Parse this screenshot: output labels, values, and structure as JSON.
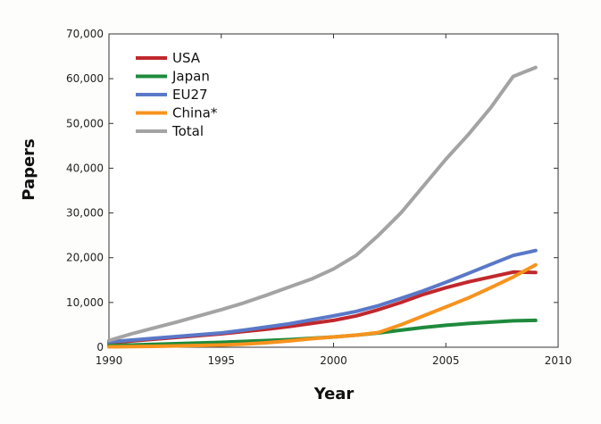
{
  "chart_data": {
    "type": "line",
    "title": "",
    "xlabel": "Year",
    "ylabel": "Papers",
    "xlim": [
      1990,
      2010
    ],
    "ylim": [
      0,
      70000
    ],
    "x_ticks": [
      1990,
      1995,
      2000,
      2005,
      2010
    ],
    "x_tick_labels": [
      "1990",
      "1995",
      "2000",
      "2005",
      "2010"
    ],
    "y_ticks": [
      0,
      10000,
      20000,
      30000,
      40000,
      50000,
      60000,
      70000
    ],
    "y_tick_labels": [
      "0",
      "10,000",
      "20,000",
      "30,000",
      "40,000",
      "50,000",
      "60,000",
      "70,000"
    ],
    "grid": false,
    "legend_position": "top-left",
    "series": [
      {
        "name": "USA",
        "color": "#c0282d",
        "x": [
          1990,
          1991,
          1992,
          1993,
          1994,
          1995,
          1996,
          1997,
          1998,
          1999,
          2000,
          2001,
          2002,
          2003,
          2004,
          2005,
          2006,
          2007,
          2008,
          2009
        ],
        "values": [
          1000,
          1400,
          1800,
          2200,
          2600,
          3000,
          3500,
          4000,
          4600,
          5300,
          6000,
          7000,
          8400,
          10000,
          11800,
          13300,
          14600,
          15700,
          16800,
          16700
        ]
      },
      {
        "name": "Japan",
        "color": "#1e8a3c",
        "x": [
          1990,
          1991,
          1992,
          1993,
          1994,
          1995,
          1996,
          1997,
          1998,
          1999,
          2000,
          2001,
          2002,
          2003,
          2004,
          2005,
          2006,
          2007,
          2008,
          2009
        ],
        "values": [
          400,
          500,
          650,
          800,
          950,
          1100,
          1300,
          1500,
          1700,
          2000,
          2300,
          2700,
          3200,
          3800,
          4400,
          4900,
          5300,
          5600,
          5900,
          6000
        ]
      },
      {
        "name": "EU27",
        "color": "#5a78c8",
        "x": [
          1990,
          1991,
          1992,
          1993,
          1994,
          1995,
          1996,
          1997,
          1998,
          1999,
          2000,
          2001,
          2002,
          2003,
          2004,
          2005,
          2006,
          2007,
          2008,
          2009
        ],
        "values": [
          1200,
          1600,
          2000,
          2400,
          2800,
          3200,
          3800,
          4500,
          5200,
          6100,
          7000,
          8000,
          9300,
          10900,
          12600,
          14500,
          16500,
          18500,
          20500,
          21600
        ]
      },
      {
        "name": "China*",
        "color": "#f7931e",
        "x": [
          1990,
          1991,
          1992,
          1993,
          1994,
          1995,
          1996,
          1997,
          1998,
          1999,
          2000,
          2001,
          2002,
          2003,
          2004,
          2005,
          2006,
          2007,
          2008,
          2009
        ],
        "values": [
          100,
          150,
          200,
          300,
          400,
          500,
          700,
          1000,
          1400,
          1900,
          2300,
          2700,
          3300,
          5000,
          7000,
          9000,
          11000,
          13300,
          15700,
          18400
        ]
      },
      {
        "name": "Total",
        "color": "#a3a3a3",
        "x": [
          1990,
          1991,
          1992,
          1993,
          1994,
          1995,
          1996,
          1997,
          1998,
          1999,
          2000,
          2001,
          2002,
          2003,
          2004,
          2005,
          2006,
          2007,
          2008,
          2009
        ],
        "values": [
          1500,
          3000,
          4300,
          5600,
          7000,
          8400,
          9900,
          11600,
          13400,
          15200,
          17500,
          20500,
          25000,
          30000,
          36000,
          42000,
          47500,
          53500,
          60500,
          62500
        ]
      }
    ]
  }
}
